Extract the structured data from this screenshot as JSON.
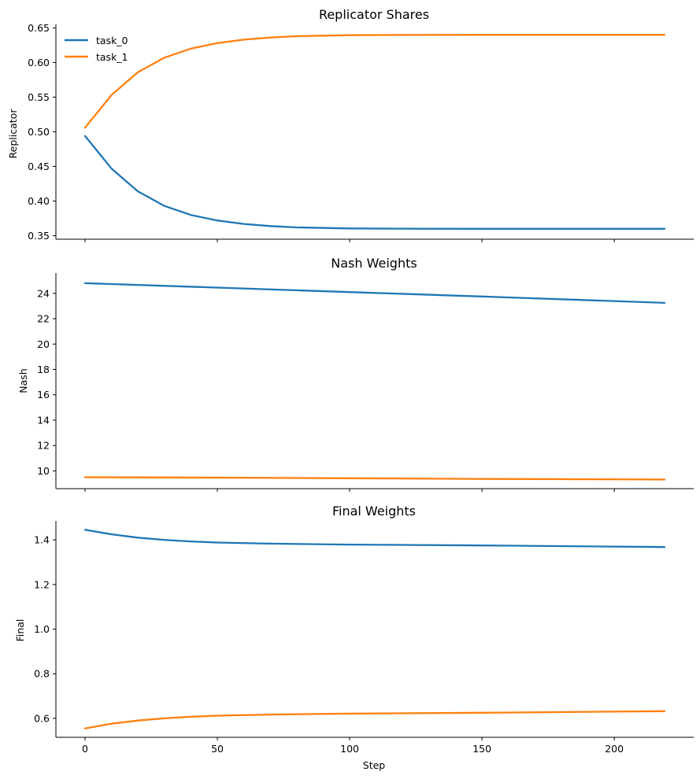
{
  "colors": {
    "task_0": "#1f77b4",
    "task_1": "#ff7f0e"
  },
  "chart_data": [
    {
      "type": "line",
      "title": "Replicator Shares",
      "ylabel": "Replicator",
      "xlabel": "",
      "xlim": [
        -11,
        230
      ],
      "ylim": [
        0.345,
        0.655
      ],
      "yticks": [
        0.35,
        0.4,
        0.45,
        0.5,
        0.55,
        0.6,
        0.65
      ],
      "ytick_labels": [
        "0.35",
        "0.40",
        "0.45",
        "0.50",
        "0.55",
        "0.60",
        "0.65"
      ],
      "legend": {
        "placement": "top-left"
      },
      "series": [
        {
          "name": "task_0",
          "x": [
            0,
            10,
            20,
            30,
            40,
            50,
            60,
            70,
            80,
            100,
            120,
            150,
            180,
            219
          ],
          "y": [
            0.494,
            0.447,
            0.414,
            0.393,
            0.38,
            0.372,
            0.367,
            0.364,
            0.362,
            0.3605,
            0.3602,
            0.36,
            0.36,
            0.36
          ]
        },
        {
          "name": "task_1",
          "x": [
            0,
            10,
            20,
            30,
            40,
            50,
            60,
            70,
            80,
            100,
            120,
            150,
            180,
            219
          ],
          "y": [
            0.506,
            0.553,
            0.586,
            0.607,
            0.62,
            0.628,
            0.633,
            0.636,
            0.638,
            0.6395,
            0.6398,
            0.64,
            0.64,
            0.64
          ]
        }
      ]
    },
    {
      "type": "line",
      "title": "Nash Weights",
      "ylabel": "Nash",
      "xlabel": "",
      "xlim": [
        -11,
        230
      ],
      "ylim": [
        8.6,
        25.6
      ],
      "yticks": [
        10,
        12,
        14,
        16,
        18,
        20,
        22,
        24
      ],
      "ytick_labels": [
        "10",
        "12",
        "14",
        "16",
        "18",
        "20",
        "22",
        "24"
      ],
      "series": [
        {
          "name": "task_0",
          "x": [
            0,
            50,
            100,
            150,
            219
          ],
          "y": [
            24.8,
            24.45,
            24.1,
            23.75,
            23.25
          ]
        },
        {
          "name": "task_1",
          "x": [
            0,
            50,
            100,
            150,
            219
          ],
          "y": [
            9.5,
            9.47,
            9.42,
            9.37,
            9.32
          ]
        }
      ]
    },
    {
      "type": "line",
      "title": "Final Weights",
      "ylabel": "Final",
      "xlabel": "Step",
      "xlim": [
        -11,
        230
      ],
      "ylim": [
        0.515,
        1.485
      ],
      "yticks": [
        0.6,
        0.8,
        1.0,
        1.2,
        1.4
      ],
      "ytick_labels": [
        "0.6",
        "0.8",
        "1.0",
        "1.2",
        "1.4"
      ],
      "xticks": [
        0,
        50,
        100,
        150,
        200
      ],
      "xtick_labels": [
        "0",
        "50",
        "100",
        "150",
        "200"
      ],
      "series": [
        {
          "name": "task_0",
          "x": [
            0,
            10,
            20,
            30,
            40,
            50,
            70,
            100,
            150,
            219
          ],
          "y": [
            1.445,
            1.425,
            1.41,
            1.4,
            1.393,
            1.388,
            1.383,
            1.379,
            1.375,
            1.368
          ]
        },
        {
          "name": "task_1",
          "x": [
            0,
            10,
            20,
            30,
            40,
            50,
            70,
            100,
            150,
            219
          ],
          "y": [
            0.555,
            0.576,
            0.59,
            0.6,
            0.607,
            0.612,
            0.617,
            0.621,
            0.625,
            0.632
          ]
        }
      ]
    }
  ]
}
